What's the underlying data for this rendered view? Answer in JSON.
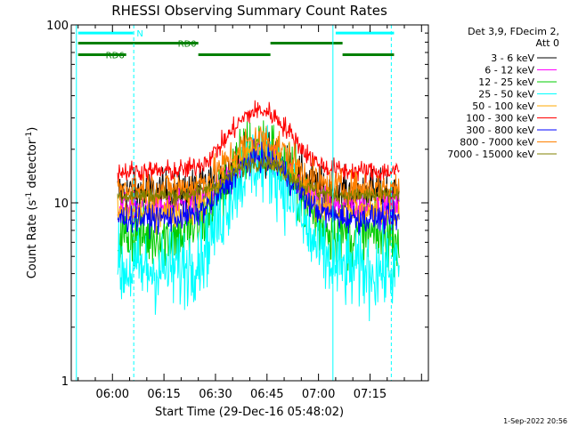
{
  "chart_data": {
    "type": "line",
    "title": "RHESSI Observing Summary Count Rates",
    "xlabel": "Start Time (29-Dec-16 05:48:02)",
    "ylabel_main": "Count Rate (s",
    "ylabel_sup1": "-1",
    "ylabel_mid": " detector",
    "ylabel_sup2": "-1",
    "ylabel_end": ")",
    "yscale": "log",
    "ylim": [
      1,
      100
    ],
    "xlim_min": [
      348,
      452
    ],
    "y_ticks": [
      {
        "value": 1,
        "label": "1"
      },
      {
        "value": 10,
        "label": "10"
      },
      {
        "value": 100,
        "label": "100"
      }
    ],
    "x_ticks": [
      {
        "min": 360,
        "label": "06:00"
      },
      {
        "min": 375,
        "label": "06:15"
      },
      {
        "min": 390,
        "label": "06:30"
      },
      {
        "min": 405,
        "label": "06:45"
      },
      {
        "min": 420,
        "label": "07:00"
      },
      {
        "min": 435,
        "label": "07:15"
      }
    ],
    "legend_header": [
      "Det 3,9, FDecim 2,",
      "Att 0"
    ],
    "series": [
      {
        "name": "3 - 6 keV",
        "color": "#000000",
        "base": 11.5,
        "peak": 19,
        "noise": 0.2
      },
      {
        "name": "6 - 12 keV",
        "color": "#ff00ff",
        "base": 9.5,
        "peak": 19,
        "noise": 0.14
      },
      {
        "name": "12 - 25 keV",
        "color": "#00cc00",
        "base": 6.5,
        "peak": 21,
        "noise": 0.3
      },
      {
        "name": "25 - 50 keV",
        "color": "#00ffff",
        "base": 4.2,
        "peak": 17,
        "noise": 0.38
      },
      {
        "name": "50 - 100 keV",
        "color": "#ffaa00",
        "base": 8.8,
        "peak": 20,
        "noise": 0.15
      },
      {
        "name": "100 - 300 keV",
        "color": "#ff0000",
        "base": 15,
        "peak": 33,
        "noise": 0.1
      },
      {
        "name": "300 - 800 keV",
        "color": "#0000ff",
        "base": 8.2,
        "peak": 18,
        "noise": 0.13
      },
      {
        "name": "800 - 7000 keV",
        "color": "#ff8000",
        "base": 12,
        "peak": 23,
        "noise": 0.16
      },
      {
        "name": "7000 - 15000 keV",
        "color": "#808000",
        "base": 11,
        "peak": 17,
        "noise": 0.08
      }
    ],
    "data_start_min": 361.5,
    "data_end_min": 443.5,
    "peak_center_min": 403,
    "peak_width_min": 11,
    "flag_bars": [
      {
        "label": "N",
        "color": "#00ffff",
        "y_value": 90,
        "segments": [
          [
            350,
            366
          ],
          [
            425,
            442
          ]
        ]
      },
      {
        "label": "RD0",
        "color": "#008000",
        "y_value": 79,
        "segments": [
          [
            350,
            385
          ],
          [
            406,
            427
          ]
        ]
      },
      {
        "label": "RD6",
        "color": "#008000",
        "y_value": 68,
        "segments": [
          [
            350,
            364
          ],
          [
            385,
            406
          ],
          [
            427,
            442
          ]
        ]
      }
    ],
    "vertical_lines": [
      {
        "min": 349.5,
        "color": "#00ffff",
        "style": "solid"
      },
      {
        "min": 366.2,
        "color": "#00ffff",
        "style": "dashed"
      },
      {
        "min": 424.2,
        "color": "#00ffff",
        "style": "solid"
      },
      {
        "min": 441.2,
        "color": "#00ffff",
        "style": "dashed"
      }
    ],
    "footer_date": "1-Sep-2022 20:56"
  }
}
